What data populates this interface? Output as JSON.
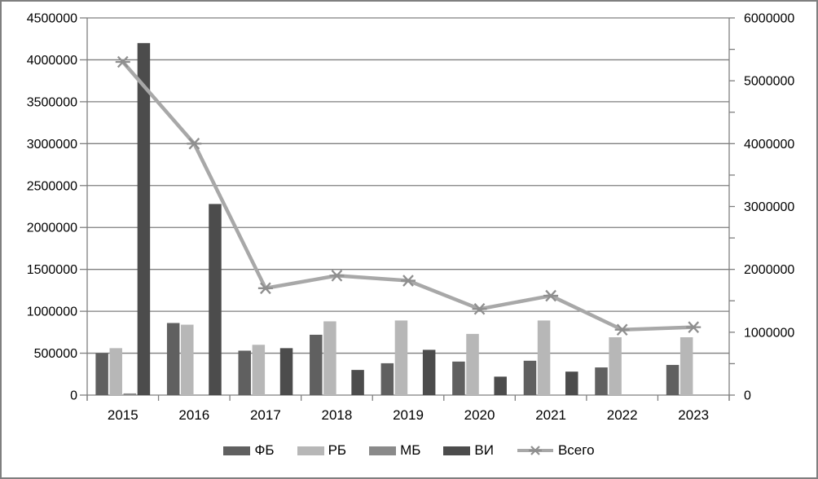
{
  "chart_data": {
    "type": "bar",
    "subtype": "grouped bars with overlaid line (combo chart, dual axes)",
    "categories": [
      "2015",
      "2016",
      "2017",
      "2018",
      "2019",
      "2020",
      "2021",
      "2022",
      "2023"
    ],
    "series": [
      {
        "name": "ФБ",
        "key": "fb",
        "type": "bar",
        "axis": "left",
        "color": "#606060",
        "values": [
          500000,
          860000,
          530000,
          720000,
          380000,
          400000,
          410000,
          330000,
          360000
        ]
      },
      {
        "name": "РБ",
        "key": "rb",
        "type": "bar",
        "axis": "left",
        "color": "#b7b7b7",
        "values": [
          560000,
          840000,
          600000,
          880000,
          890000,
          730000,
          890000,
          690000,
          690000
        ]
      },
      {
        "name": "МБ",
        "key": "mb",
        "type": "bar",
        "axis": "left",
        "color": "#8a8a8a",
        "values": [
          20000,
          0,
          0,
          0,
          0,
          0,
          0,
          0,
          0
        ]
      },
      {
        "name": "ВИ",
        "key": "vi",
        "type": "bar",
        "axis": "left",
        "color": "#4c4c4c",
        "values": [
          4200000,
          2280000,
          560000,
          300000,
          540000,
          220000,
          280000,
          0,
          0
        ]
      },
      {
        "name": "Всего",
        "key": "vsego",
        "type": "line",
        "axis": "right",
        "color": "#a8a8a8",
        "marker": "star",
        "marker_color": "#8f8f8f",
        "values": [
          5300000,
          4000000,
          1700000,
          1900000,
          1820000,
          1370000,
          1580000,
          1040000,
          1080000
        ]
      }
    ],
    "left_axis": {
      "min": 0,
      "max": 4500000,
      "step": 500000,
      "labels": [
        "0",
        "500000",
        "1000000",
        "1500000",
        "2000000",
        "2500000",
        "3000000",
        "3500000",
        "4000000",
        "4500000"
      ]
    },
    "right_axis": {
      "min": 0,
      "max": 6000000,
      "label_step": 1000000,
      "tick_step": 500000,
      "labels": [
        "0",
        "1000000",
        "2000000",
        "3000000",
        "4000000",
        "5000000",
        "6000000"
      ]
    },
    "grid": true,
    "legend_position": "bottom",
    "title": "",
    "xlabel": "",
    "ylabel": ""
  },
  "colors": {
    "gridline": "#7f7f7f",
    "axis": "#7f7f7f",
    "figure_border": "#7f7f7f",
    "background": "#ffffff",
    "text": "#000000"
  }
}
